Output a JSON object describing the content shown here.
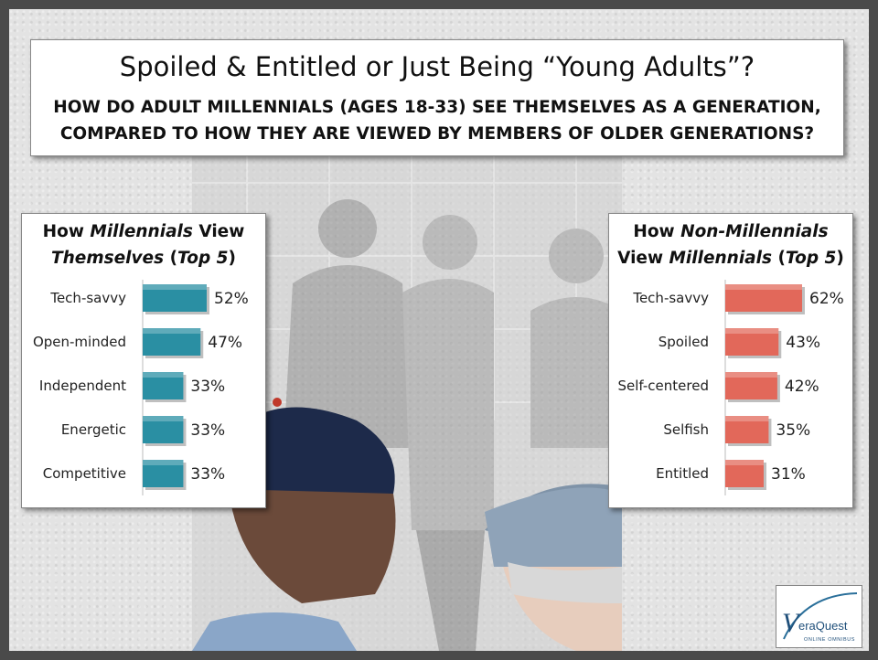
{
  "header": {
    "title": "Spoiled & Entitled or Just Being “Young Adults”?",
    "subtitle_line1": "HOW DO ADULT MILLENNIALS (AGES 18-33) SEE THEMSELVES AS A GENERATION,",
    "subtitle_line2": "COMPARED TO HOW THEY ARE VIEWED BY MEMBERS OF OLDER GENERATIONS?"
  },
  "left_panel": {
    "title_parts": [
      "How ",
      "Millennials",
      " View",
      "Themselves",
      " (",
      "Top 5",
      ")"
    ]
  },
  "right_panel": {
    "title_parts": [
      "How ",
      "Non-Millennials",
      "View ",
      "Millennials",
      " (",
      "Top 5",
      ")"
    ]
  },
  "logo": {
    "brand_initial": "V",
    "brand_rest": "eraQuest",
    "tagline": "ONLINE OMNIBUS"
  },
  "colors": {
    "left_bar": "#2a8fa3",
    "right_bar": "#e2685a"
  },
  "chart_data": [
    {
      "type": "bar",
      "orientation": "horizontal",
      "title": "How Millennials View Themselves (Top 5)",
      "categories": [
        "Tech-savvy",
        "Open-minded",
        "Independent",
        "Energetic",
        "Competitive"
      ],
      "values": [
        52,
        47,
        33,
        33,
        33
      ],
      "labels": [
        "52%",
        "47%",
        "33%",
        "33%",
        "33%"
      ],
      "unit": "%",
      "xlim": [
        0,
        100
      ]
    },
    {
      "type": "bar",
      "orientation": "horizontal",
      "title": "How Non-Millennials View Millennials (Top 5)",
      "categories": [
        "Tech-savvy",
        "Spoiled",
        "Self-centered",
        "Selfish",
        "Entitled"
      ],
      "values": [
        62,
        43,
        42,
        35,
        31
      ],
      "labels": [
        "62%",
        "43%",
        "42%",
        "35%",
        "31%"
      ],
      "unit": "%",
      "xlim": [
        0,
        100
      ]
    }
  ]
}
